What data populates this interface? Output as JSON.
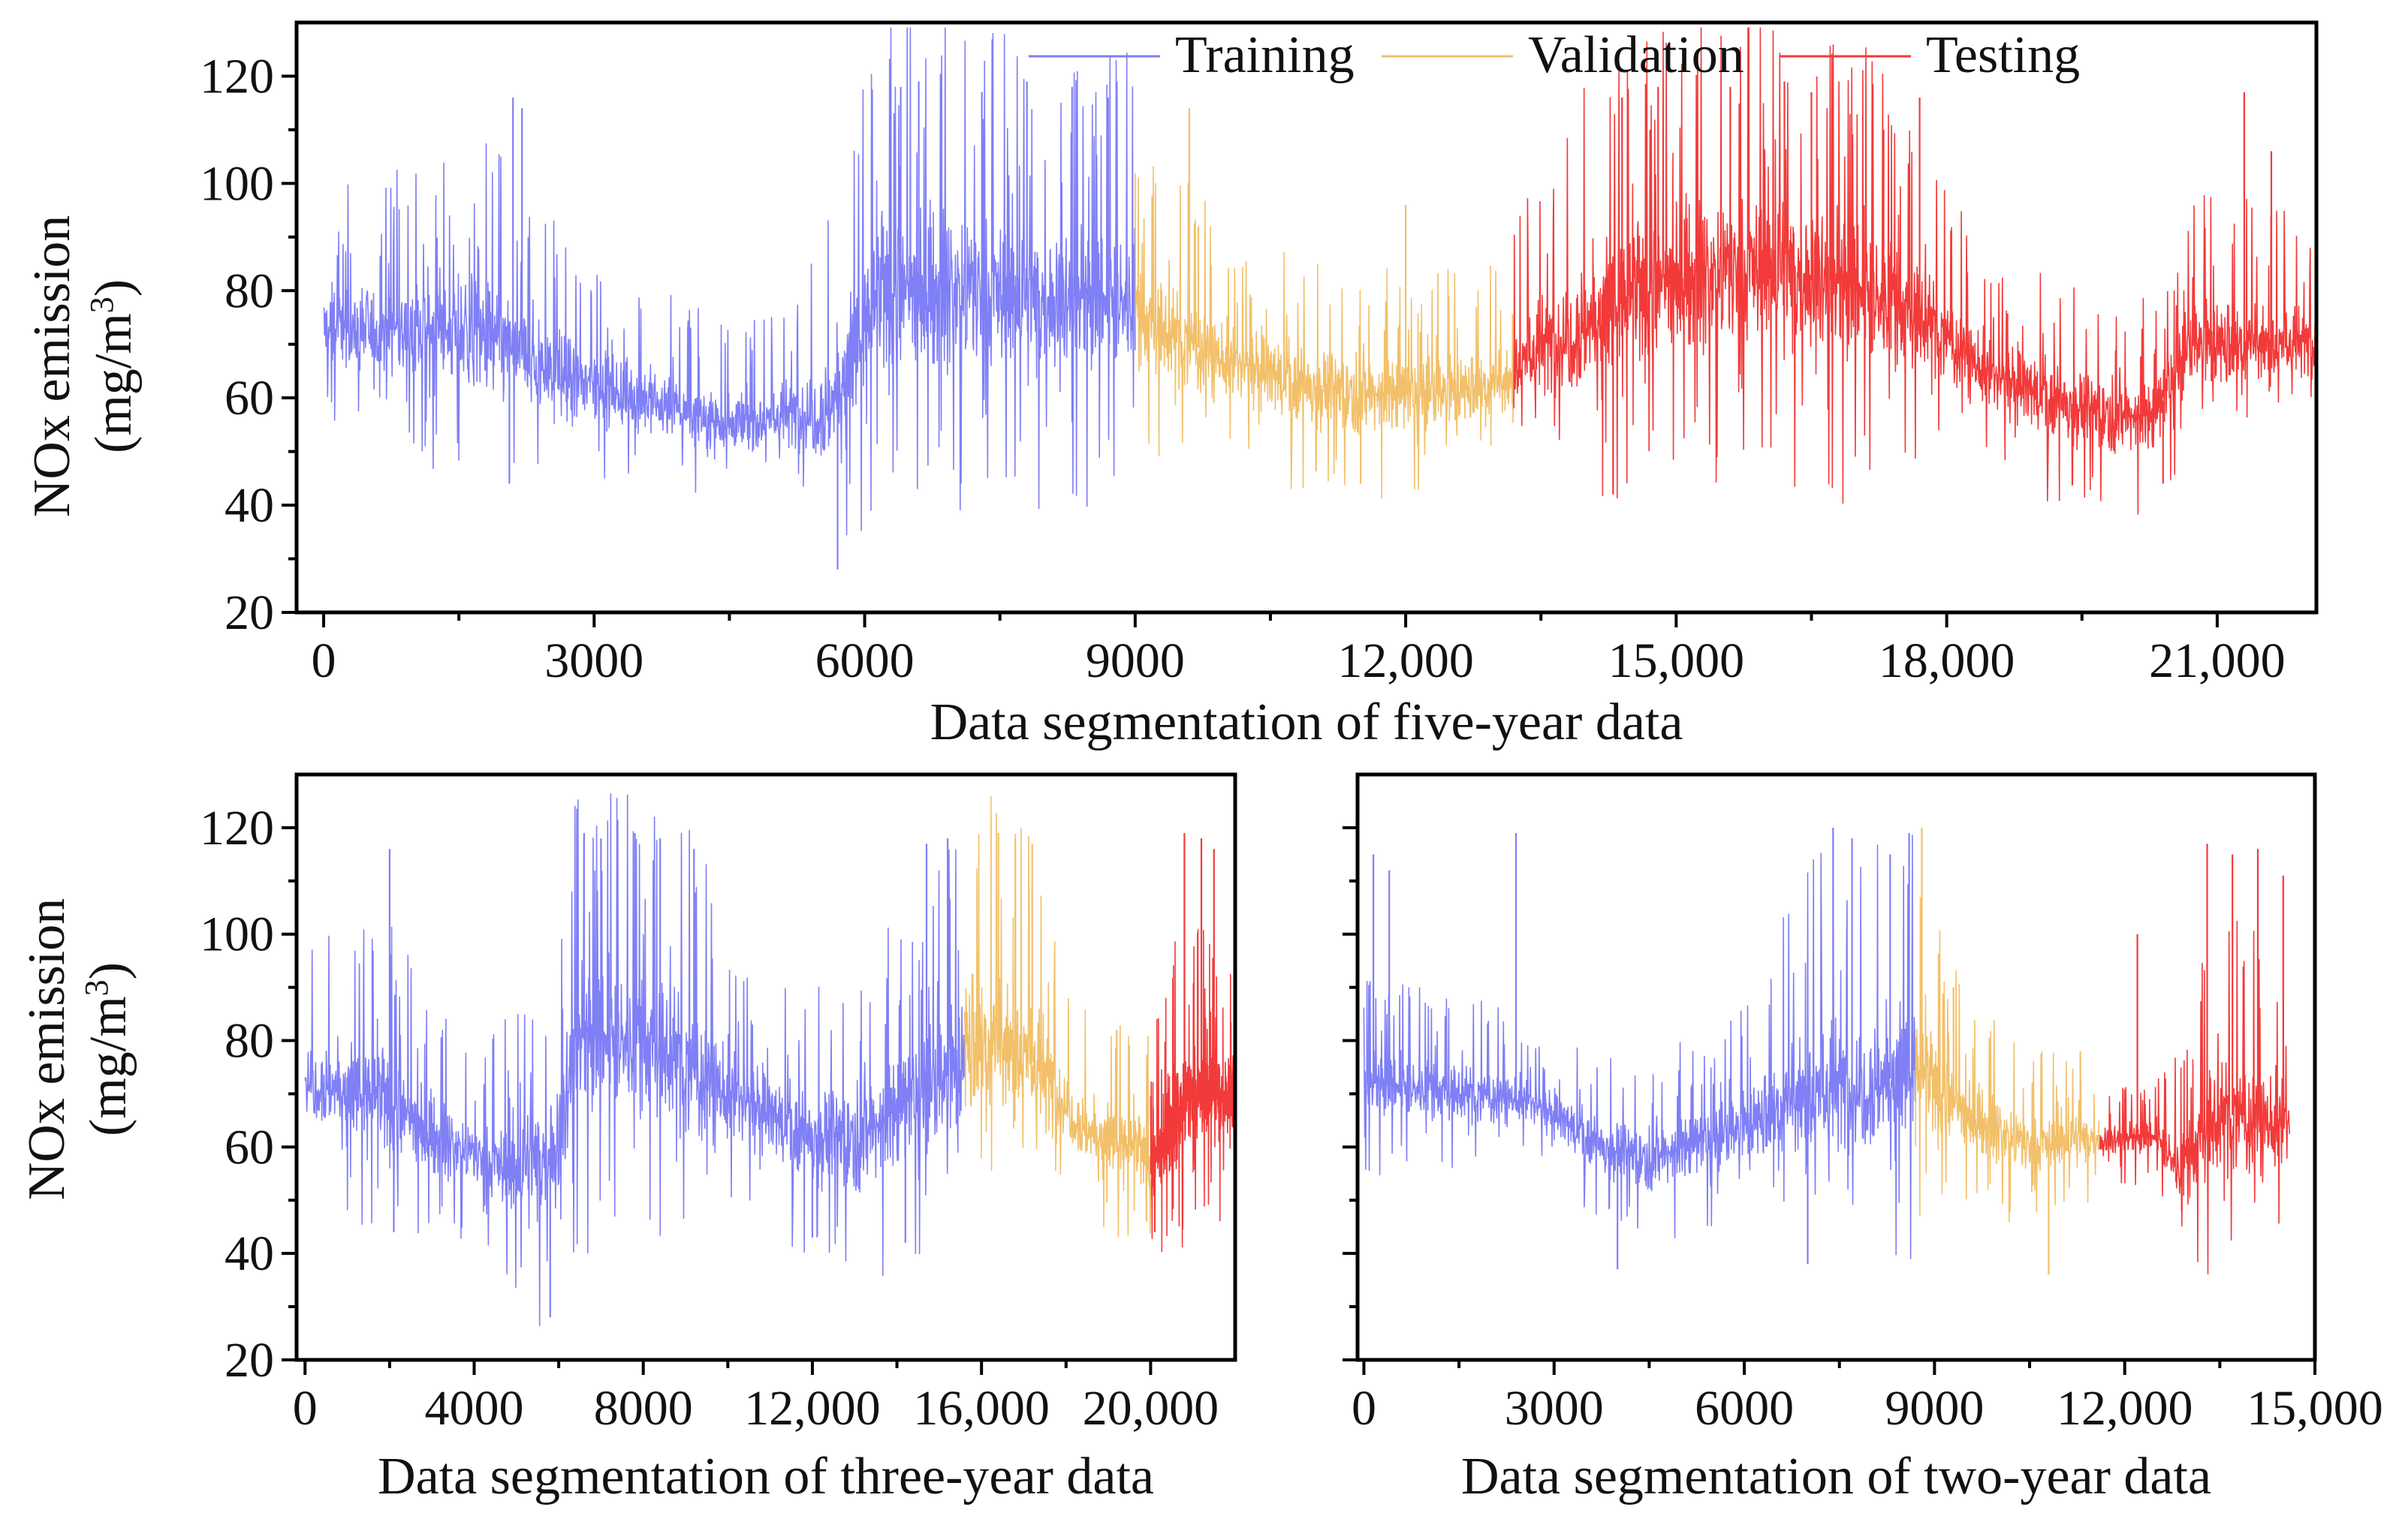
{
  "series_names": [
    "Training",
    "Validation",
    "Testing"
  ],
  "colors": {
    "Training": "#7f7ff6",
    "Validation": "#f2c06a",
    "Testing": "#f23a3a"
  },
  "y_title_line1": "NOx emission",
  "y_title_line2": "(mg/m",
  "y_title_sup": "3",
  "y_title_close": ")",
  "chart_data": [
    {
      "type": "line",
      "title": "",
      "xlabel": "Data segmentation of five-year  data",
      "ylabel": "NOx emission (mg/m3)",
      "xlim": [
        -300,
        22100
      ],
      "ylim": [
        20,
        130
      ],
      "xticks": [
        0,
        3000,
        6000,
        9000,
        12000,
        15000,
        18000,
        21000
      ],
      "xtick_labels": [
        "0",
        "3000",
        "6000",
        "9000",
        "12,000",
        "15,000",
        "18,000",
        "21,000"
      ],
      "yticks": [
        20,
        40,
        60,
        80,
        100,
        120
      ],
      "ytick_labels": [
        "20",
        "40",
        "60",
        "80",
        "100",
        "120"
      ],
      "legend": "top-right",
      "series": [
        {
          "name": "Training",
          "range": [
            0,
            9000
          ],
          "trend": [
            [
              0,
              73
            ],
            [
              1500,
              72
            ],
            [
              2000,
              70
            ],
            [
              2600,
              64
            ],
            [
              3500,
              60
            ],
            [
              4500,
              55
            ],
            [
              5600,
              58
            ],
            [
              6200,
              79
            ],
            [
              7000,
              80
            ],
            [
              8000,
              78
            ],
            [
              9000,
              78
            ]
          ],
          "amp": [
            [
              0,
              7
            ],
            [
              2000,
              10
            ],
            [
              3000,
              6
            ],
            [
              5000,
              5
            ],
            [
              6200,
              14
            ],
            [
              9000,
              13
            ]
          ],
          "spikes": [
            [
              2100,
              116
            ],
            [
              2200,
              114
            ],
            [
              2060,
              44
            ],
            [
              5700,
              28
            ],
            [
              6400,
              118
            ],
            [
              6600,
              119
            ],
            [
              7300,
              117
            ],
            [
              7800,
              119
            ],
            [
              8300,
              118
            ],
            [
              8700,
              116
            ]
          ]
        },
        {
          "name": "Validation",
          "range": [
            9000,
            13200
          ],
          "trend": [
            [
              9000,
              75
            ],
            [
              10000,
              67
            ],
            [
              11000,
              62
            ],
            [
              12000,
              60
            ],
            [
              13200,
              63
            ]
          ],
          "amp": [
            [
              9000,
              9
            ],
            [
              10000,
              7
            ],
            [
              13200,
              6
            ]
          ],
          "spikes": [
            [
              9600,
              114
            ],
            [
              9700,
              92
            ],
            [
              11500,
              44
            ],
            [
              12000,
              96
            ]
          ]
        },
        {
          "name": "Testing",
          "range": [
            13200,
            22100
          ],
          "trend": [
            [
              13200,
              66
            ],
            [
              14000,
              74
            ],
            [
              15000,
              82
            ],
            [
              16000,
              84
            ],
            [
              17000,
              80
            ],
            [
              17800,
              74
            ],
            [
              18500,
              64
            ],
            [
              19500,
              58
            ],
            [
              20300,
              56
            ],
            [
              20700,
              70
            ],
            [
              22100,
              70
            ]
          ],
          "amp": [
            [
              13200,
              7
            ],
            [
              14000,
              12
            ],
            [
              17000,
              14
            ],
            [
              18000,
              7
            ],
            [
              20300,
              6
            ],
            [
              21000,
              8
            ],
            [
              22100,
              6
            ]
          ],
          "spikes": [
            [
              14300,
              42
            ],
            [
              14400,
              116
            ],
            [
              14800,
              118
            ],
            [
              15600,
              118
            ],
            [
              16200,
              119
            ],
            [
              16500,
              117
            ],
            [
              17300,
              110
            ],
            [
              17700,
              116
            ],
            [
              20400,
              44
            ],
            [
              21300,
              117
            ],
            [
              21600,
              106
            ]
          ]
        }
      ]
    },
    {
      "type": "line",
      "title": "",
      "xlabel": "Data segmentation of three-year  data",
      "ylabel": "NOx emission (mg/m3)",
      "xlim": [
        -200,
        22000
      ],
      "ylim": [
        20,
        130
      ],
      "xticks": [
        0,
        4000,
        8000,
        12000,
        16000,
        20000
      ],
      "xtick_labels": [
        "0",
        "4000",
        "8000",
        "12,000",
        "16,000",
        "20,000"
      ],
      "yticks": [
        20,
        40,
        60,
        80,
        100,
        120
      ],
      "ytick_labels": [
        "20",
        "40",
        "60",
        "80",
        "100",
        "120"
      ],
      "legend": "none",
      "series": [
        {
          "name": "Training",
          "range": [
            0,
            15600
          ],
          "trend": [
            [
              0,
              73
            ],
            [
              2000,
              68
            ],
            [
              3000,
              62
            ],
            [
              5000,
              55
            ],
            [
              6000,
              60
            ],
            [
              6400,
              80
            ],
            [
              7500,
              80
            ],
            [
              8500,
              78
            ],
            [
              10000,
              70
            ],
            [
              12000,
              62
            ],
            [
              13000,
              62
            ],
            [
              14000,
              66
            ],
            [
              15000,
              72
            ],
            [
              15600,
              76
            ]
          ],
          "amp": [
            [
              0,
              7
            ],
            [
              2000,
              9
            ],
            [
              4000,
              5
            ],
            [
              6400,
              14
            ],
            [
              9000,
              12
            ],
            [
              11000,
              7
            ],
            [
              14000,
              10
            ],
            [
              15600,
              12
            ]
          ],
          "spikes": [
            [
              2000,
              116
            ],
            [
              2100,
              44
            ],
            [
              5800,
              28
            ],
            [
              6600,
              119
            ],
            [
              7000,
              118
            ],
            [
              7800,
              119
            ],
            [
              8400,
              118
            ],
            [
              9200,
              116
            ],
            [
              12000,
              43
            ],
            [
              14200,
              42
            ],
            [
              14700,
              117
            ],
            [
              15200,
              118
            ]
          ]
        },
        {
          "name": "Validation",
          "range": [
            15600,
            20000
          ],
          "trend": [
            [
              15600,
              80
            ],
            [
              17000,
              78
            ],
            [
              17800,
              70
            ],
            [
              18500,
              63
            ],
            [
              20000,
              58
            ]
          ],
          "amp": [
            [
              15600,
              14
            ],
            [
              17700,
              10
            ],
            [
              18000,
              6
            ],
            [
              20000,
              6
            ]
          ],
          "spikes": [
            [
              16400,
              119
            ],
            [
              16800,
              118
            ],
            [
              17200,
              117
            ],
            [
              19200,
              82
            ],
            [
              19900,
              46
            ]
          ]
        },
        {
          "name": "Testing",
          "range": [
            20000,
            22000
          ],
          "trend": [
            [
              20000,
              55
            ],
            [
              20500,
              65
            ],
            [
              21000,
              70
            ],
            [
              22000,
              70
            ]
          ],
          "amp": [
            [
              20000,
              6
            ],
            [
              20500,
              9
            ],
            [
              22000,
              8
            ]
          ],
          "spikes": [
            [
              20100,
              44
            ],
            [
              20800,
              119
            ],
            [
              21200,
              118
            ],
            [
              21500,
              116
            ]
          ]
        }
      ]
    },
    {
      "type": "line",
      "title": "",
      "xlabel": "Data segmentation of two-year  data",
      "ylabel": "",
      "xlim": [
        -100,
        15000
      ],
      "ylim": [
        20,
        130
      ],
      "xticks": [
        0,
        3000,
        6000,
        9000,
        12000,
        15000
      ],
      "xtick_labels": [
        "0",
        "3000",
        "6000",
        "9000",
        "12,000",
        "15,000"
      ],
      "yticks": [
        20,
        40,
        60,
        80,
        100,
        120
      ],
      "ytick_labels": [],
      "legend": "none",
      "series": [
        {
          "name": "Training",
          "range": [
            0,
            8700
          ],
          "trend": [
            [
              0,
              72
            ],
            [
              1500,
              70
            ],
            [
              2500,
              69
            ],
            [
              3000,
              66
            ],
            [
              3800,
              60
            ],
            [
              4500,
              58
            ],
            [
              5500,
              61
            ],
            [
              6000,
              64
            ],
            [
              7000,
              70
            ],
            [
              8000,
              72
            ],
            [
              8700,
              74
            ]
          ],
          "amp": [
            [
              0,
              6
            ],
            [
              2800,
              4
            ],
            [
              4000,
              5
            ],
            [
              6000,
              6
            ],
            [
              7000,
              12
            ],
            [
              8700,
              12
            ]
          ],
          "spikes": [
            [
              150,
              115
            ],
            [
              400,
              112
            ],
            [
              2400,
              119
            ],
            [
              4000,
              37
            ],
            [
              7000,
              38
            ],
            [
              7400,
              120
            ],
            [
              7700,
              118
            ],
            [
              8300,
              115
            ],
            [
              8600,
              119
            ]
          ]
        },
        {
          "name": "Validation",
          "range": [
            8700,
            11600
          ],
          "trend": [
            [
              8700,
              74
            ],
            [
              9500,
              66
            ],
            [
              10500,
              60
            ],
            [
              11600,
              62
            ]
          ],
          "amp": [
            [
              8700,
              10
            ],
            [
              9500,
              6
            ],
            [
              11600,
              4
            ]
          ],
          "spikes": [
            [
              8800,
              120
            ],
            [
              9300,
              90
            ],
            [
              10800,
              36
            ],
            [
              11300,
              78
            ]
          ]
        },
        {
          "name": "Testing",
          "range": [
            11600,
            14600
          ],
          "trend": [
            [
              11600,
              61
            ],
            [
              12500,
              62
            ],
            [
              12900,
              55
            ],
            [
              13300,
              64
            ],
            [
              13700,
              66
            ],
            [
              14600,
              64
            ]
          ],
          "amp": [
            [
              11600,
              3
            ],
            [
              12500,
              3
            ],
            [
              13300,
              10
            ],
            [
              14600,
              9
            ]
          ],
          "spikes": [
            [
              12200,
              100
            ],
            [
              12900,
              48
            ],
            [
              13300,
              117
            ],
            [
              13700,
              115
            ],
            [
              14100,
              116
            ],
            [
              14500,
              111
            ]
          ]
        }
      ]
    }
  ]
}
